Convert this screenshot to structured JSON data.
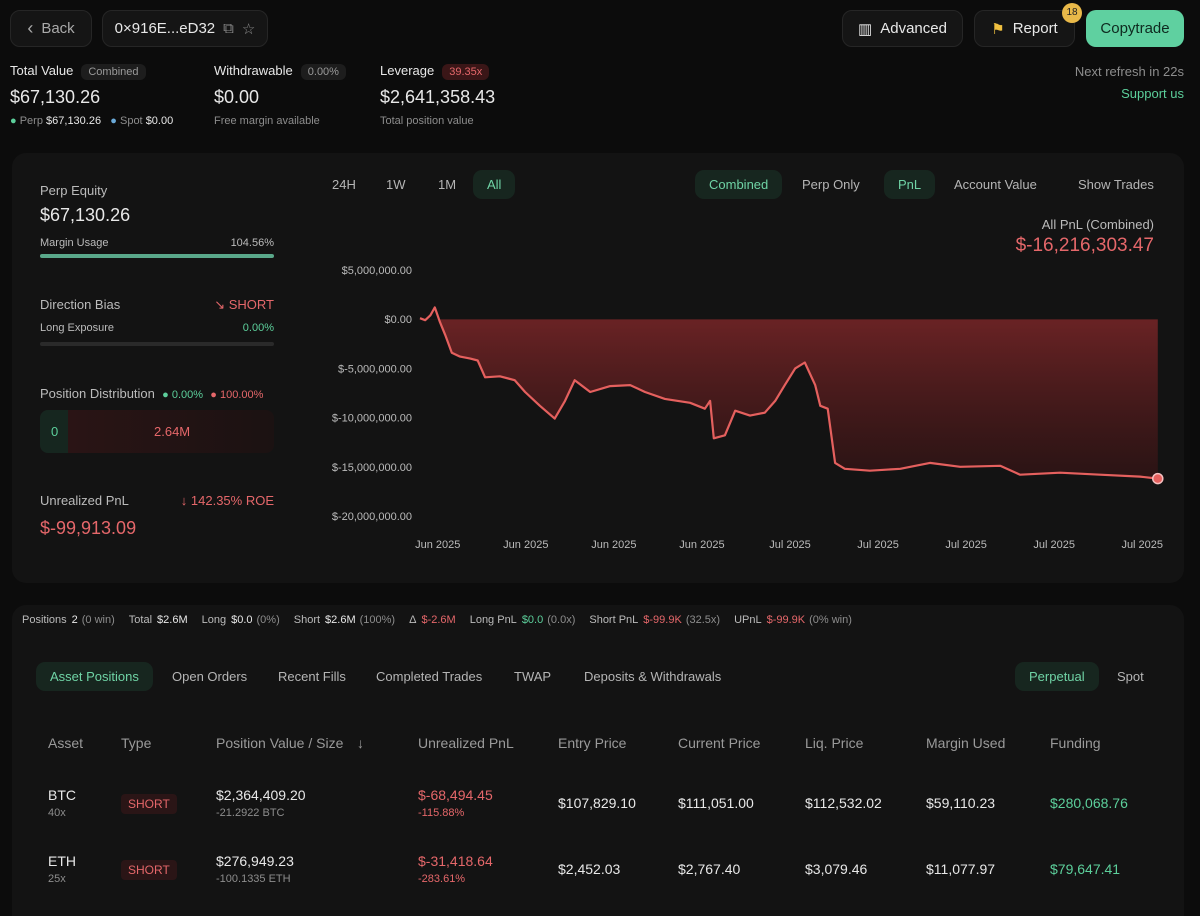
{
  "header": {
    "back": "Back",
    "address": "0×916E...eD32",
    "advanced": "Advanced",
    "report": "Report",
    "report_badge": "18",
    "copytrade": "Copytrade"
  },
  "stats": {
    "total_value": {
      "label": "Total Value",
      "tag": "Combined",
      "value": "$67,130.26",
      "perp_label": "Perp",
      "perp_value": "$67,130.26",
      "spot_label": "Spot",
      "spot_value": "$0.00"
    },
    "withdrawable": {
      "label": "Withdrawable",
      "tag": "0.00%",
      "value": "$0.00",
      "sub": "Free margin available"
    },
    "leverage": {
      "label": "Leverage",
      "tag": "39.35x",
      "value": "$2,641,358.43",
      "sub": "Total position value"
    },
    "refresh": "Next refresh in 22s",
    "support": "Support us"
  },
  "summary": {
    "perp_equity_label": "Perp Equity",
    "perp_equity": "$67,130.26",
    "margin_usage_label": "Margin Usage",
    "margin_usage": "104.56%",
    "direction_bias_label": "Direction Bias",
    "direction_bias": "SHORT",
    "long_exposure_label": "Long Exposure",
    "long_exposure": "0.00%",
    "distribution_label": "Position Distribution",
    "distribution_long": "0.00%",
    "distribution_short": "100.00%",
    "distribution_long_value": "0",
    "distribution_short_value": "2.64M",
    "upnl_label": "Unrealized PnL",
    "roe": "142.35% ROE",
    "upnl": "$-99,913.09"
  },
  "controls": {
    "ranges": [
      "24H",
      "1W",
      "1M",
      "All"
    ],
    "modes": [
      "Combined",
      "Perp Only"
    ],
    "metrics": [
      "PnL",
      "Account Value"
    ],
    "show_trades": "Show Trades"
  },
  "chart": {
    "type": "line",
    "title": "All PnL (Combined)",
    "headline": "$-16,216,303.47",
    "color": "#e5605e",
    "ylim": [
      -20000000,
      5000000
    ],
    "yticks": [
      {
        "value": 5000000,
        "label": "$5,000,000.00"
      },
      {
        "value": 0,
        "label": "$0.00"
      },
      {
        "value": -5000000,
        "label": "$-5,000,000.00"
      },
      {
        "value": -10000000,
        "label": "$-10,000,000.00"
      },
      {
        "value": -15000000,
        "label": "$-15,000,000.00"
      },
      {
        "value": -20000000,
        "label": "$-20,000,000.00"
      }
    ],
    "xlim": [
      0,
      100
    ],
    "xticks": [
      {
        "value": 2.4,
        "label": "Jun 2025"
      },
      {
        "value": 14.3,
        "label": "Jun 2025"
      },
      {
        "value": 26.2,
        "label": "Jun 2025"
      },
      {
        "value": 38.1,
        "label": "Jun 2025"
      },
      {
        "value": 50,
        "label": "Jul 2025"
      },
      {
        "value": 61.9,
        "label": "Jul 2025"
      },
      {
        "value": 73.8,
        "label": "Jul 2025"
      },
      {
        "value": 85.7,
        "label": "Jul 2025"
      },
      {
        "value": 97.6,
        "label": "Jul 2025"
      }
    ],
    "x": [
      0,
      0.7,
      1.4,
      2.0,
      2.7,
      3.4,
      4.3,
      5.4,
      6.8,
      7.8,
      8.8,
      10.8,
      12.8,
      14.2,
      16.2,
      18.2,
      19.6,
      20.9,
      23.0,
      25.7,
      28.4,
      30.4,
      33.1,
      36.5,
      38.5,
      39.2,
      39.7,
      41.2,
      42.6,
      44.6,
      46.6,
      48.0,
      49.3,
      50.7,
      52.0,
      53.4,
      54.1,
      55.1,
      56.1,
      57.4,
      60.8,
      64.9,
      68.9,
      73.0,
      78.4,
      81.1,
      86.5,
      91.9,
      97.3,
      99.7
    ],
    "values": [
      100000,
      -100000,
      400000,
      1200000,
      -300000,
      -1600000,
      -3400000,
      -3800000,
      -4000000,
      -4200000,
      -5900000,
      -5800000,
      -6200000,
      -7400000,
      -8800000,
      -10100000,
      -8300000,
      -6200000,
      -7400000,
      -6800000,
      -6700000,
      -7400000,
      -8100000,
      -8500000,
      -9100000,
      -8300000,
      -12100000,
      -11800000,
      -9300000,
      -9800000,
      -9500000,
      -8300000,
      -6700000,
      -5000000,
      -4400000,
      -6700000,
      -8800000,
      -9100000,
      -14600000,
      -15200000,
      -15400000,
      -15200000,
      -14600000,
      -15000000,
      -14900000,
      -15800000,
      -15600000,
      -15800000,
      -16000000,
      -16200000
    ]
  },
  "positions_bar": [
    {
      "label": "Positions",
      "value": "2",
      "note": "(0 win)"
    },
    {
      "label": "Total",
      "value": "$2.6M"
    },
    {
      "label": "Long",
      "value": "$0.0",
      "note": "(0%)"
    },
    {
      "label": "Short",
      "value": "$2.6M",
      "note": "(100%)"
    },
    {
      "label": "Δ",
      "value": "$-2.6M"
    },
    {
      "label": "Long PnL",
      "value": "$0.0",
      "note": "(0.0x)"
    },
    {
      "label": "Short PnL",
      "value": "$-99.9K",
      "note": "(32.5x)"
    },
    {
      "label": "UPnL",
      "value": "$-99.9K",
      "note": "(0% win)"
    }
  ],
  "tabs": [
    "Asset Positions",
    "Open Orders",
    "Recent Fills",
    "Completed Trades",
    "TWAP",
    "Deposits & Withdrawals"
  ],
  "market_tabs": [
    "Perpetual",
    "Spot"
  ],
  "table": {
    "columns": [
      "Asset",
      "Type",
      "Position Value / Size",
      "Unrealized PnL",
      "Entry Price",
      "Current Price",
      "Liq. Price",
      "Margin Used",
      "Funding"
    ],
    "rows": [
      {
        "asset": "BTC",
        "leverage": "40x",
        "type": "SHORT",
        "value": "$2,364,409.20",
        "size": "-21.2922 BTC",
        "pnl": "$-68,494.45",
        "pnl_pct": "-115.88%",
        "entry": "$107,829.10",
        "current": "$111,051.00",
        "liq": "$112,532.02",
        "margin": "$59,110.23",
        "funding": "$280,068.76"
      },
      {
        "asset": "ETH",
        "leverage": "25x",
        "type": "SHORT",
        "value": "$276,949.23",
        "size": "-100.1335 ETH",
        "pnl": "$-31,418.64",
        "pnl_pct": "-283.61%",
        "entry": "$2,452.03",
        "current": "$2,767.40",
        "liq": "$3,079.46",
        "margin": "$11,077.97",
        "funding": "$79,647.41"
      }
    ]
  }
}
